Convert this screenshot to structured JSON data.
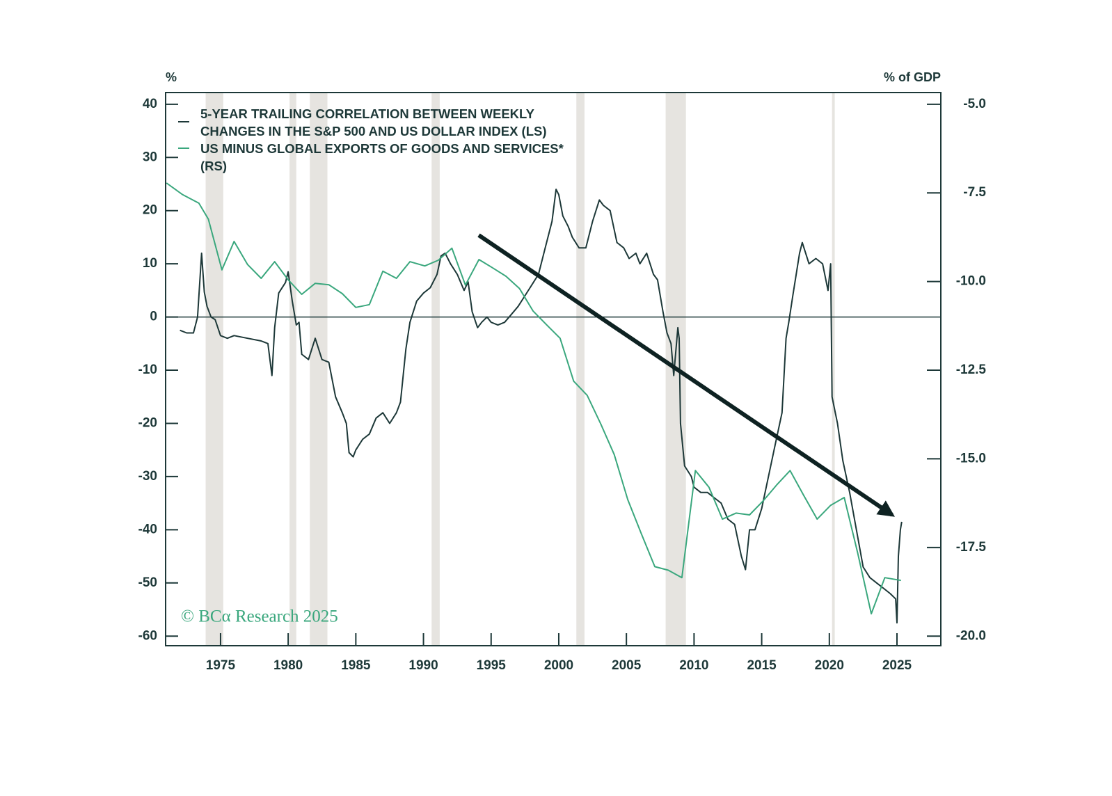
{
  "chart_data": {
    "type": "line",
    "y_unit_label": "%",
    "y2_unit_label": "% of GDP",
    "copyright": "© BCα Research 2025",
    "xlim": [
      1970.94,
      2028.24
    ],
    "xticks": [
      1975,
      1980,
      1985,
      1990,
      1995,
      2000,
      2005,
      2010,
      2015,
      2020,
      2025
    ],
    "ylim": [
      -61.8,
      42.2
    ],
    "yticks": [
      -60,
      -50,
      -40,
      -30,
      -20,
      -10,
      0,
      10,
      20,
      30,
      40
    ],
    "y2lim": [
      -20.27,
      -4.67
    ],
    "y2ticks": [
      {
        "value": -20,
        "label": "-20.0"
      },
      {
        "value": -17.5,
        "label": "-17.5"
      },
      {
        "value": -15,
        "label": "-15.0"
      },
      {
        "value": -12.5,
        "label": "-12.5"
      },
      {
        "value": -10,
        "label": "-10.0"
      },
      {
        "value": -7.5,
        "label": "-7.5"
      },
      {
        "value": -5,
        "label": "-5.0"
      }
    ],
    "recessions": [
      [
        1973.9,
        1975.2
      ],
      [
        1980.1,
        1980.6
      ],
      [
        1981.6,
        1982.9
      ],
      [
        1990.6,
        1991.2
      ],
      [
        2001.3,
        2001.9
      ],
      [
        2007.9,
        2009.4
      ],
      [
        2020.2,
        2020.4
      ]
    ],
    "series": [
      {
        "name": "5-YEAR TRAILING CORRELATION BETWEEN WEEKLY CHANGES IN THE S&P 500 AND US DOLLAR INDEX (LS)",
        "color": "#1d3838",
        "axis": "y",
        "x": [
          1972.0,
          1972.5,
          1973.0,
          1973.3,
          1973.6,
          1973.8,
          1974.0,
          1974.3,
          1974.6,
          1975.0,
          1975.5,
          1976.0,
          1977.0,
          1978.0,
          1978.5,
          1978.8,
          1979.0,
          1979.3,
          1979.8,
          1980.0,
          1980.3,
          1980.6,
          1980.8,
          1981.0,
          1981.5,
          1982.0,
          1982.5,
          1983.0,
          1983.5,
          1984.0,
          1984.3,
          1984.5,
          1984.8,
          1985.0,
          1985.5,
          1986.0,
          1986.5,
          1987.0,
          1987.5,
          1988.0,
          1988.3,
          1988.7,
          1989.0,
          1989.5,
          1990.0,
          1990.5,
          1991.0,
          1991.3,
          1991.6,
          1992.0,
          1992.5,
          1993.0,
          1993.3,
          1993.6,
          1994.0,
          1994.3,
          1994.7,
          1995.0,
          1995.5,
          1996.0,
          1996.5,
          1997.0,
          1997.5,
          1998.0,
          1998.5,
          1999.0,
          1999.5,
          1999.8,
          2000.0,
          2000.3,
          2000.7,
          2001.0,
          2001.5,
          2002.0,
          2002.5,
          2003.0,
          2003.3,
          2003.8,
          2004.3,
          2004.8,
          2005.2,
          2005.7,
          2006.0,
          2006.5,
          2007.0,
          2007.3,
          2007.7,
          2008.0,
          2008.3,
          2008.5,
          2008.8,
          2008.9,
          2009.0,
          2009.3,
          2009.8,
          2010.0,
          2010.5,
          2011.0,
          2011.5,
          2012.0,
          2012.5,
          2013.0,
          2013.5,
          2013.8,
          2014.1,
          2014.5,
          2015.0,
          2015.5,
          2016.0,
          2016.5,
          2016.8,
          2017.0,
          2017.3,
          2017.8,
          2018.0,
          2018.5,
          2019.0,
          2019.5,
          2019.9,
          2020.1,
          2020.2,
          2020.6,
          2021.0,
          2021.5,
          2022.0,
          2022.5,
          2023.0,
          2023.5,
          2024.0,
          2024.5,
          2024.9,
          2025.0,
          2025.1,
          2025.25,
          2025.35
        ],
        "values": [
          -2.5,
          -3,
          -3,
          0,
          12,
          4.7,
          2,
          0,
          -0.5,
          -3.5,
          -4,
          -3.5,
          -4,
          -4.5,
          -5,
          -11,
          -2,
          4.5,
          6.5,
          8.5,
          3,
          -1.5,
          -1,
          -7,
          -8,
          -4,
          -8,
          -8.5,
          -15,
          -18,
          -20,
          -25.5,
          -26.3,
          -25,
          -23,
          -22,
          -19,
          -18,
          -20,
          -18,
          -16,
          -6,
          -1,
          3,
          4.5,
          5.5,
          8,
          11.5,
          12,
          10,
          8,
          5,
          6.6,
          1,
          -2,
          -1,
          0,
          -1,
          -1.5,
          -1,
          0.5,
          2,
          4,
          6,
          8,
          13,
          18,
          24,
          23,
          19,
          17,
          15,
          13,
          13,
          18,
          22,
          21,
          20,
          14,
          13,
          11,
          12,
          10,
          12,
          8,
          7,
          1,
          -3,
          -5,
          -11,
          -2,
          -4,
          -20,
          -28,
          -30,
          -32,
          -33,
          -33,
          -34,
          -35,
          -38,
          -39,
          -45,
          -47.5,
          -40,
          -40,
          -36,
          -30,
          -24,
          -18,
          -4,
          -1,
          4,
          12,
          14,
          10,
          11,
          10,
          5,
          10,
          -15,
          -20,
          -27,
          -33,
          -40,
          -47,
          -49,
          -50,
          -51,
          -52,
          -53,
          -57.5,
          -45,
          -40,
          -38.5
        ]
      },
      {
        "name": "US MINUS GLOBAL EXPORTS OF GOODS AND SERVICES* (RS)",
        "color": "#3aa77d",
        "axis": "y2",
        "x": [
          1971,
          1972.2,
          1973.4,
          1974.1,
          1975.1,
          1976,
          1977,
          1978,
          1979,
          1980,
          1981,
          1982,
          1983,
          1984,
          1985,
          1986,
          1987,
          1988,
          1989,
          1990.1,
          1991.1,
          1992.1,
          1993.1,
          1994.1,
          1995.1,
          1996.1,
          1997.1,
          1998.1,
          1999.1,
          2000.1,
          2001.1,
          2002.1,
          2003.1,
          2004.1,
          2005.1,
          2006.1,
          2007.1,
          2008.1,
          2009.1,
          2010.1,
          2011.1,
          2012.1,
          2013.1,
          2014.1,
          2015.1,
          2016.1,
          2017.1,
          2018.1,
          2019.1,
          2020.1,
          2021.1,
          2022.1,
          2023.1,
          2024.1,
          2025.3
        ],
        "values": [
          -7.22,
          -7.55,
          -7.79,
          -8.24,
          -9.67,
          -8.87,
          -9.52,
          -9.91,
          -9.44,
          -9.95,
          -10.36,
          -10.05,
          -10.09,
          -10.34,
          -10.73,
          -10.65,
          -9.71,
          -9.91,
          -9.44,
          -9.56,
          -9.4,
          -9.06,
          -10.1,
          -9.38,
          -9.61,
          -9.85,
          -10.2,
          -10.83,
          -11.22,
          -11.6,
          -12.81,
          -13.21,
          -14.01,
          -14.88,
          -16.15,
          -17.11,
          -18.04,
          -18.14,
          -18.35,
          -15.33,
          -15.8,
          -16.7,
          -16.53,
          -16.58,
          -16.19,
          -15.74,
          -15.33,
          -16.03,
          -16.7,
          -16.31,
          -16.09,
          -17.66,
          -19.37,
          -18.35,
          -18.43
        ]
      }
    ]
  }
}
